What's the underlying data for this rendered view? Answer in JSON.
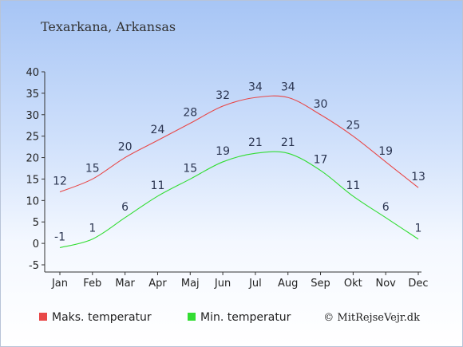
{
  "chart_data": {
    "type": "line",
    "title": "Texarkana, Arkansas",
    "categories": [
      "Jan",
      "Feb",
      "Mar",
      "Apr",
      "Maj",
      "Jun",
      "Jul",
      "Aug",
      "Sep",
      "Okt",
      "Nov",
      "Dec"
    ],
    "ylim": [
      -5,
      40
    ],
    "yticks": [
      -5,
      0,
      5,
      10,
      15,
      20,
      25,
      30,
      35,
      40
    ],
    "series": [
      {
        "name": "Maks. temperatur",
        "color": "#e84848",
        "values": [
          12,
          15,
          20,
          24,
          28,
          32,
          34,
          34,
          30,
          25,
          19,
          13
        ]
      },
      {
        "name": "Min. temperatur",
        "color": "#33dd33",
        "values": [
          -1,
          1,
          6,
          11,
          15,
          19,
          21,
          21,
          17,
          11,
          6,
          1
        ]
      }
    ],
    "legend_position": "bottom-left",
    "grid": false
  },
  "credit": "© MitRejseVejr.dk"
}
